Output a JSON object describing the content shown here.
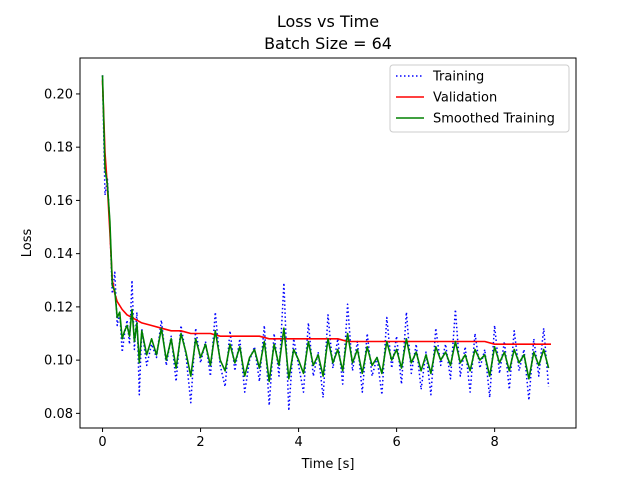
{
  "chart_data": {
    "type": "line",
    "title": "Loss vs Time",
    "subtitle": "Batch Size = 64",
    "xlabel": "Time [s]",
    "ylabel": "Loss",
    "xlim": [
      -0.46,
      9.66
    ],
    "ylim": [
      0.0745,
      0.2135
    ],
    "x_ticks": [
      0,
      2,
      4,
      6,
      8
    ],
    "x_tick_labels": [
      "0",
      "2",
      "4",
      "6",
      "8"
    ],
    "y_ticks": [
      0.08,
      0.1,
      0.12,
      0.14,
      0.16,
      0.18,
      0.2
    ],
    "y_tick_labels": [
      "0.08",
      "0.10",
      "0.12",
      "0.14",
      "0.16",
      "0.18",
      "0.20"
    ],
    "grid": false,
    "legend_position": "top-right",
    "series": [
      {
        "name": "Training",
        "color": "#0000ff",
        "style": "dotted",
        "x": [
          0,
          0.05,
          0.1,
          0.15,
          0.2,
          0.25,
          0.3,
          0.35,
          0.4,
          0.45,
          0.5,
          0.55,
          0.6,
          0.65,
          0.7,
          0.75,
          0.8,
          0.9,
          1.0,
          1.1,
          1.2,
          1.3,
          1.4,
          1.5,
          1.6,
          1.7,
          1.8,
          1.9,
          2.0,
          2.1,
          2.2,
          2.3,
          2.4,
          2.5,
          2.6,
          2.7,
          2.8,
          2.9,
          3.0,
          3.1,
          3.2,
          3.3,
          3.4,
          3.5,
          3.6,
          3.7,
          3.8,
          3.9,
          4.0,
          4.1,
          4.2,
          4.3,
          4.4,
          4.5,
          4.6,
          4.7,
          4.8,
          4.9,
          5.0,
          5.1,
          5.2,
          5.3,
          5.4,
          5.5,
          5.6,
          5.7,
          5.8,
          5.9,
          6.0,
          6.1,
          6.2,
          6.3,
          6.4,
          6.5,
          6.6,
          6.7,
          6.8,
          6.9,
          7.0,
          7.1,
          7.2,
          7.3,
          7.4,
          7.5,
          7.6,
          7.7,
          7.8,
          7.9,
          8.0,
          8.1,
          8.2,
          8.3,
          8.4,
          8.5,
          8.6,
          8.7,
          8.8,
          8.9,
          9.0,
          9.1
        ],
        "values": [
          0.207,
          0.162,
          0.168,
          0.15,
          0.125,
          0.133,
          0.113,
          0.118,
          0.103,
          0.11,
          0.115,
          0.106,
          0.13,
          0.104,
          0.118,
          0.087,
          0.112,
          0.098,
          0.106,
          0.101,
          0.115,
          0.098,
          0.109,
          0.092,
          0.113,
          0.102,
          0.084,
          0.112,
          0.099,
          0.107,
          0.094,
          0.118,
          0.098,
          0.09,
          0.111,
          0.096,
          0.108,
          0.088,
          0.1,
          0.105,
          0.092,
          0.113,
          0.083,
          0.11,
          0.094,
          0.129,
          0.081,
          0.108,
          0.098,
          0.088,
          0.114,
          0.094,
          0.103,
          0.086,
          0.117,
          0.097,
          0.108,
          0.091,
          0.121,
          0.096,
          0.107,
          0.088,
          0.11,
          0.094,
          0.101,
          0.087,
          0.116,
          0.097,
          0.109,
          0.091,
          0.118,
          0.095,
          0.106,
          0.089,
          0.103,
          0.087,
          0.112,
          0.098,
          0.106,
          0.093,
          0.119,
          0.094,
          0.105,
          0.088,
          0.11,
          0.097,
          0.104,
          0.086,
          0.113,
          0.095,
          0.107,
          0.089,
          0.111,
          0.096,
          0.104,
          0.085,
          0.108,
          0.094,
          0.112,
          0.09
        ]
      },
      {
        "name": "Validation",
        "color": "#ff0000",
        "style": "solid",
        "x": [
          0,
          0.05,
          0.1,
          0.15,
          0.2,
          0.25,
          0.3,
          0.4,
          0.5,
          0.6,
          0.7,
          0.8,
          1.0,
          1.2,
          1.4,
          1.6,
          1.8,
          2.0,
          2.2,
          2.4,
          2.6,
          2.8,
          3.0,
          3.2,
          3.4,
          3.6,
          3.8,
          4.0,
          4.2,
          4.4,
          4.6,
          4.8,
          5.0,
          5.2,
          5.4,
          5.6,
          5.8,
          6.0,
          6.2,
          6.4,
          6.6,
          6.8,
          7.0,
          7.2,
          7.4,
          7.6,
          7.8,
          8.0,
          8.2,
          8.4,
          8.6,
          8.8,
          9.0,
          9.15
        ],
        "values": [
          0.205,
          0.178,
          0.165,
          0.148,
          0.13,
          0.125,
          0.122,
          0.119,
          0.117,
          0.116,
          0.115,
          0.114,
          0.113,
          0.112,
          0.111,
          0.111,
          0.11,
          0.11,
          0.11,
          0.109,
          0.109,
          0.109,
          0.109,
          0.109,
          0.108,
          0.108,
          0.108,
          0.108,
          0.108,
          0.108,
          0.108,
          0.108,
          0.107,
          0.107,
          0.107,
          0.107,
          0.107,
          0.107,
          0.107,
          0.107,
          0.107,
          0.107,
          0.107,
          0.107,
          0.107,
          0.107,
          0.107,
          0.106,
          0.106,
          0.106,
          0.106,
          0.106,
          0.106,
          0.106
        ]
      },
      {
        "name": "Smoothed Training",
        "color": "#008000",
        "style": "solid",
        "x": [
          0,
          0.05,
          0.1,
          0.15,
          0.2,
          0.25,
          0.3,
          0.35,
          0.4,
          0.45,
          0.5,
          0.55,
          0.6,
          0.65,
          0.7,
          0.75,
          0.8,
          0.9,
          1.0,
          1.1,
          1.2,
          1.3,
          1.4,
          1.5,
          1.6,
          1.7,
          1.8,
          1.9,
          2.0,
          2.1,
          2.2,
          2.3,
          2.4,
          2.5,
          2.6,
          2.7,
          2.8,
          2.9,
          3.0,
          3.1,
          3.2,
          3.3,
          3.4,
          3.5,
          3.6,
          3.7,
          3.8,
          3.9,
          4.0,
          4.1,
          4.2,
          4.3,
          4.4,
          4.5,
          4.6,
          4.7,
          4.8,
          4.9,
          5.0,
          5.1,
          5.2,
          5.3,
          5.4,
          5.5,
          5.6,
          5.7,
          5.8,
          5.9,
          6.0,
          6.1,
          6.2,
          6.3,
          6.4,
          6.5,
          6.6,
          6.7,
          6.8,
          6.9,
          7.0,
          7.1,
          7.2,
          7.3,
          7.4,
          7.5,
          7.6,
          7.7,
          7.8,
          7.9,
          8.0,
          8.1,
          8.2,
          8.3,
          8.4,
          8.5,
          8.6,
          8.7,
          8.8,
          8.9,
          9.0,
          9.1
        ],
        "values": [
          0.207,
          0.172,
          0.166,
          0.152,
          0.128,
          0.126,
          0.116,
          0.118,
          0.108,
          0.111,
          0.113,
          0.109,
          0.119,
          0.107,
          0.114,
          0.099,
          0.111,
          0.102,
          0.108,
          0.102,
          0.112,
          0.1,
          0.108,
          0.097,
          0.11,
          0.103,
          0.094,
          0.108,
          0.101,
          0.106,
          0.098,
          0.111,
          0.1,
          0.096,
          0.106,
          0.099,
          0.105,
          0.094,
          0.101,
          0.104,
          0.097,
          0.107,
          0.092,
          0.106,
          0.098,
          0.112,
          0.093,
          0.104,
          0.1,
          0.095,
          0.107,
          0.098,
          0.102,
          0.094,
          0.108,
          0.099,
          0.104,
          0.096,
          0.11,
          0.099,
          0.104,
          0.095,
          0.105,
          0.098,
          0.101,
          0.095,
          0.107,
          0.1,
          0.104,
          0.097,
          0.108,
          0.099,
          0.103,
          0.096,
          0.102,
          0.095,
          0.105,
          0.1,
          0.103,
          0.098,
          0.107,
          0.099,
          0.102,
          0.096,
          0.104,
          0.1,
          0.102,
          0.094,
          0.105,
          0.099,
          0.103,
          0.096,
          0.104,
          0.099,
          0.102,
          0.093,
          0.103,
          0.098,
          0.104,
          0.097
        ]
      }
    ]
  }
}
